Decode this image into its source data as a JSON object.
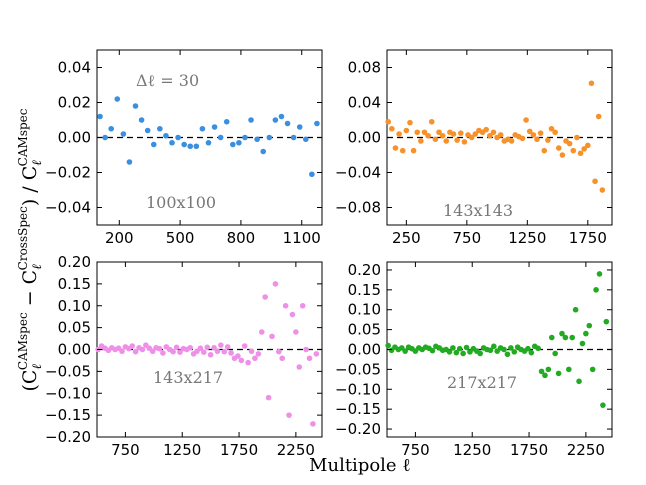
{
  "figure": {
    "xlabel": "Multipole ℓ",
    "ylabel": "(C_ℓ^{CAMspec} − C_ℓ^{CrossSpec}) / C_ℓ^{CAMspec}"
  },
  "chart_data": [
    {
      "type": "scatter",
      "label": "100x100",
      "note": "Δℓ = 30",
      "color": "#3a8fe0",
      "xlim": [
        90,
        1200
      ],
      "ylim": [
        -0.05,
        0.05
      ],
      "xticks": [
        200,
        500,
        800,
        1100
      ],
      "yticks": [
        -0.04,
        -0.02,
        0.0,
        0.02,
        0.04
      ],
      "ytick_labels": [
        "−0.04",
        "−0.02",
        "0.00",
        "0.02",
        "0.04"
      ],
      "x": [
        105,
        130,
        160,
        190,
        220,
        250,
        280,
        310,
        340,
        370,
        400,
        430,
        460,
        490,
        520,
        550,
        580,
        610,
        640,
        670,
        700,
        730,
        760,
        790,
        820,
        850,
        880,
        910,
        940,
        970,
        1000,
        1030,
        1060,
        1090,
        1120,
        1150,
        1175
      ],
      "y": [
        0.012,
        0.0,
        0.005,
        0.022,
        0.002,
        -0.014,
        0.018,
        0.01,
        0.004,
        -0.004,
        0.005,
        0.001,
        -0.003,
        0.0,
        -0.004,
        -0.005,
        -0.005,
        0.005,
        -0.003,
        0.006,
        0.0,
        0.009,
        -0.004,
        -0.003,
        0.0,
        0.01,
        -0.001,
        -0.008,
        0.0,
        0.01,
        0.012,
        0.008,
        0.0,
        0.006,
        -0.001,
        -0.021,
        0.008
      ]
    },
    {
      "type": "scatter",
      "label": "143x143",
      "color": "#f7922a",
      "xlim": [
        90,
        1950
      ],
      "ylim": [
        -0.1,
        0.1
      ],
      "xticks": [
        250,
        750,
        1250,
        1750
      ],
      "yticks": [
        -0.08,
        -0.04,
        0.0,
        0.04,
        0.08
      ],
      "ytick_labels": [
        "−0.08",
        "−0.04",
        "0.00",
        "0.04",
        "0.08"
      ],
      "x": [
        100,
        130,
        160,
        190,
        220,
        250,
        280,
        310,
        340,
        370,
        400,
        430,
        460,
        490,
        520,
        550,
        580,
        610,
        640,
        670,
        700,
        730,
        760,
        790,
        820,
        850,
        880,
        910,
        940,
        970,
        1000,
        1030,
        1060,
        1090,
        1120,
        1150,
        1180,
        1210,
        1240,
        1270,
        1300,
        1330,
        1360,
        1390,
        1420,
        1450,
        1480,
        1510,
        1540,
        1570,
        1600,
        1630,
        1660,
        1690,
        1720,
        1750,
        1780,
        1810,
        1840,
        1870
      ],
      "y": [
        0.018,
        0.01,
        -0.012,
        0.004,
        -0.015,
        0.008,
        0.017,
        -0.015,
        0.006,
        -0.004,
        0.006,
        0.002,
        0.018,
        -0.002,
        0.006,
        0.002,
        -0.004,
        0.006,
        0.004,
        -0.003,
        0.005,
        -0.005,
        0.003,
        0.0,
        0.004,
        0.008,
        0.006,
        0.009,
        0.002,
        0.006,
        0.0,
        0.003,
        -0.004,
        -0.002,
        -0.004,
        0.003,
        0.001,
        -0.001,
        0.02,
        0.007,
        0.003,
        -0.002,
        0.005,
        -0.015,
        -0.003,
        0.01,
        0.006,
        -0.012,
        -0.02,
        -0.004,
        -0.007,
        -0.015,
        0.0,
        -0.018,
        -0.013,
        -0.009,
        0.062,
        -0.05,
        0.024,
        -0.06
      ]
    },
    {
      "type": "scatter",
      "label": "143x217",
      "color": "#ee90e8",
      "xlim": [
        500,
        2480
      ],
      "ylim": [
        -0.2,
        0.2
      ],
      "xticks": [
        750,
        1250,
        1750,
        2250
      ],
      "yticks": [
        -0.2,
        -0.15,
        -0.1,
        -0.05,
        0.0,
        0.05,
        0.1,
        0.15,
        0.2
      ],
      "ytick_labels": [
        "−0.20",
        "−0.15",
        "−0.10",
        "−0.05",
        "0.00",
        "0.05",
        "0.10",
        "0.15",
        "0.20"
      ],
      "x": [
        510,
        540,
        570,
        600,
        630,
        660,
        690,
        720,
        750,
        780,
        810,
        840,
        870,
        900,
        930,
        960,
        990,
        1020,
        1050,
        1080,
        1110,
        1140,
        1170,
        1200,
        1230,
        1260,
        1290,
        1320,
        1350,
        1380,
        1410,
        1440,
        1470,
        1500,
        1530,
        1560,
        1590,
        1620,
        1650,
        1680,
        1710,
        1740,
        1770,
        1800,
        1830,
        1860,
        1890,
        1920,
        1950,
        1980,
        2010,
        2040,
        2070,
        2100,
        2130,
        2160,
        2190,
        2220,
        2250,
        2280,
        2310,
        2340,
        2370,
        2400,
        2430
      ],
      "y": [
        0.0,
        0.008,
        0.003,
        -0.002,
        0.004,
        0.0,
        0.003,
        -0.004,
        0.006,
        0.002,
        0.008,
        -0.005,
        0.004,
        0.0,
        0.01,
        0.003,
        -0.004,
        0.004,
        0.002,
        -0.008,
        0.006,
        0.0,
        -0.005,
        0.005,
        -0.006,
        0.002,
        0.0,
        0.004,
        -0.01,
        -0.004,
        0.003,
        -0.006,
        0.005,
        -0.012,
        0.004,
        -0.004,
        0.01,
        -0.005,
        0.006,
        -0.008,
        -0.02,
        -0.015,
        -0.025,
        0.008,
        -0.03,
        -0.004,
        -0.02,
        -0.01,
        0.04,
        0.12,
        -0.11,
        0.03,
        0.15,
        -0.005,
        -0.02,
        0.1,
        -0.15,
        0.08,
        0.04,
        -0.04,
        0.1,
        0.0,
        -0.02,
        -0.17,
        -0.01
      ]
    },
    {
      "type": "scatter",
      "label": "217x217",
      "color": "#22aa22",
      "xlim": [
        500,
        2480
      ],
      "ylim": [
        -0.22,
        0.22
      ],
      "xticks": [
        750,
        1250,
        1750,
        2250
      ],
      "yticks": [
        -0.2,
        -0.15,
        -0.1,
        -0.05,
        0.0,
        0.05,
        0.1,
        0.15,
        0.2
      ],
      "ytick_labels": [
        "−0.20",
        "−0.15",
        "−0.10",
        "−0.05",
        "0.00",
        "0.05",
        "0.10",
        "0.15",
        "0.20"
      ],
      "x": [
        510,
        540,
        570,
        600,
        630,
        660,
        690,
        720,
        750,
        780,
        810,
        840,
        870,
        900,
        930,
        960,
        990,
        1020,
        1050,
        1080,
        1110,
        1140,
        1170,
        1200,
        1230,
        1260,
        1290,
        1320,
        1350,
        1380,
        1410,
        1440,
        1470,
        1500,
        1530,
        1560,
        1590,
        1620,
        1650,
        1680,
        1710,
        1740,
        1770,
        1800,
        1830,
        1860,
        1890,
        1920,
        1950,
        1980,
        2010,
        2040,
        2070,
        2100,
        2130,
        2160,
        2190,
        2220,
        2250,
        2280,
        2310,
        2340,
        2370,
        2400,
        2430
      ],
      "y": [
        0.01,
        -0.002,
        0.006,
        0.0,
        0.004,
        -0.004,
        0.006,
        0.002,
        -0.004,
        0.004,
        0.0,
        0.006,
        0.003,
        -0.003,
        0.008,
        0.004,
        -0.002,
        0.0,
        -0.006,
        0.004,
        -0.008,
        0.002,
        -0.01,
        0.005,
        -0.006,
        0.002,
        -0.004,
        -0.01,
        0.004,
        0.0,
        -0.002,
        0.008,
        -0.004,
        0.004,
        0.0,
        -0.012,
        0.004,
        -0.006,
        0.006,
        0.0,
        -0.004,
        0.002,
        -0.008,
        0.008,
        0.003,
        -0.055,
        -0.065,
        -0.05,
        0.03,
        -0.01,
        -0.06,
        0.04,
        0.03,
        -0.05,
        0.03,
        0.1,
        -0.08,
        0.015,
        0.04,
        0.06,
        -0.05,
        0.15,
        0.19,
        -0.14,
        0.07
      ]
    }
  ]
}
